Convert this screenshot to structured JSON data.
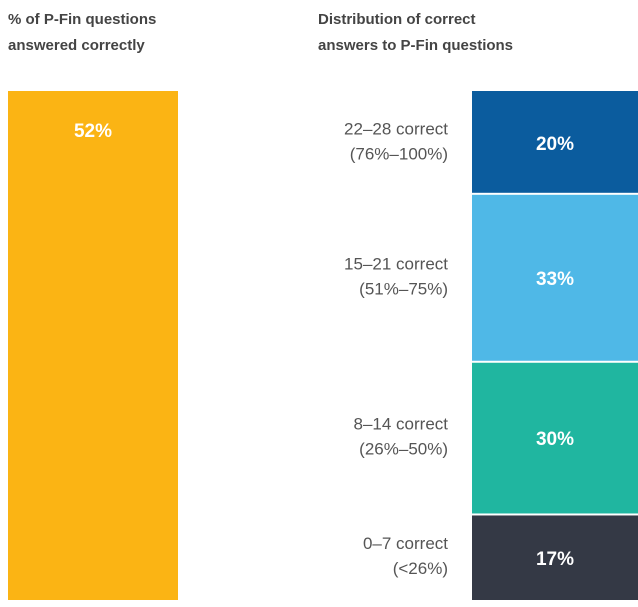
{
  "chart_data": [
    {
      "type": "bar",
      "title": [
        "% of P-Fin questions",
        "answered correctly"
      ],
      "values": [
        52
      ],
      "value_labels": [
        "52%"
      ],
      "color": "#fbb414"
    },
    {
      "type": "stacked_bar",
      "title": [
        "Distribution of correct",
        "answers to P-Fin questions"
      ],
      "categories": [
        [
          "22–28 correct",
          "(76%–100%)"
        ],
        [
          "15–21 correct",
          "(51%–75%)"
        ],
        [
          "8–14 correct",
          "(26%–50%)"
        ],
        [
          "0–7 correct",
          "(<26%)"
        ]
      ],
      "values": [
        20,
        33,
        30,
        17
      ],
      "value_labels": [
        "20%",
        "33%",
        "30%",
        "17%"
      ],
      "colors": [
        "#0b5c9e",
        "#4fb8e7",
        "#20b6a0",
        "#343945"
      ]
    }
  ]
}
